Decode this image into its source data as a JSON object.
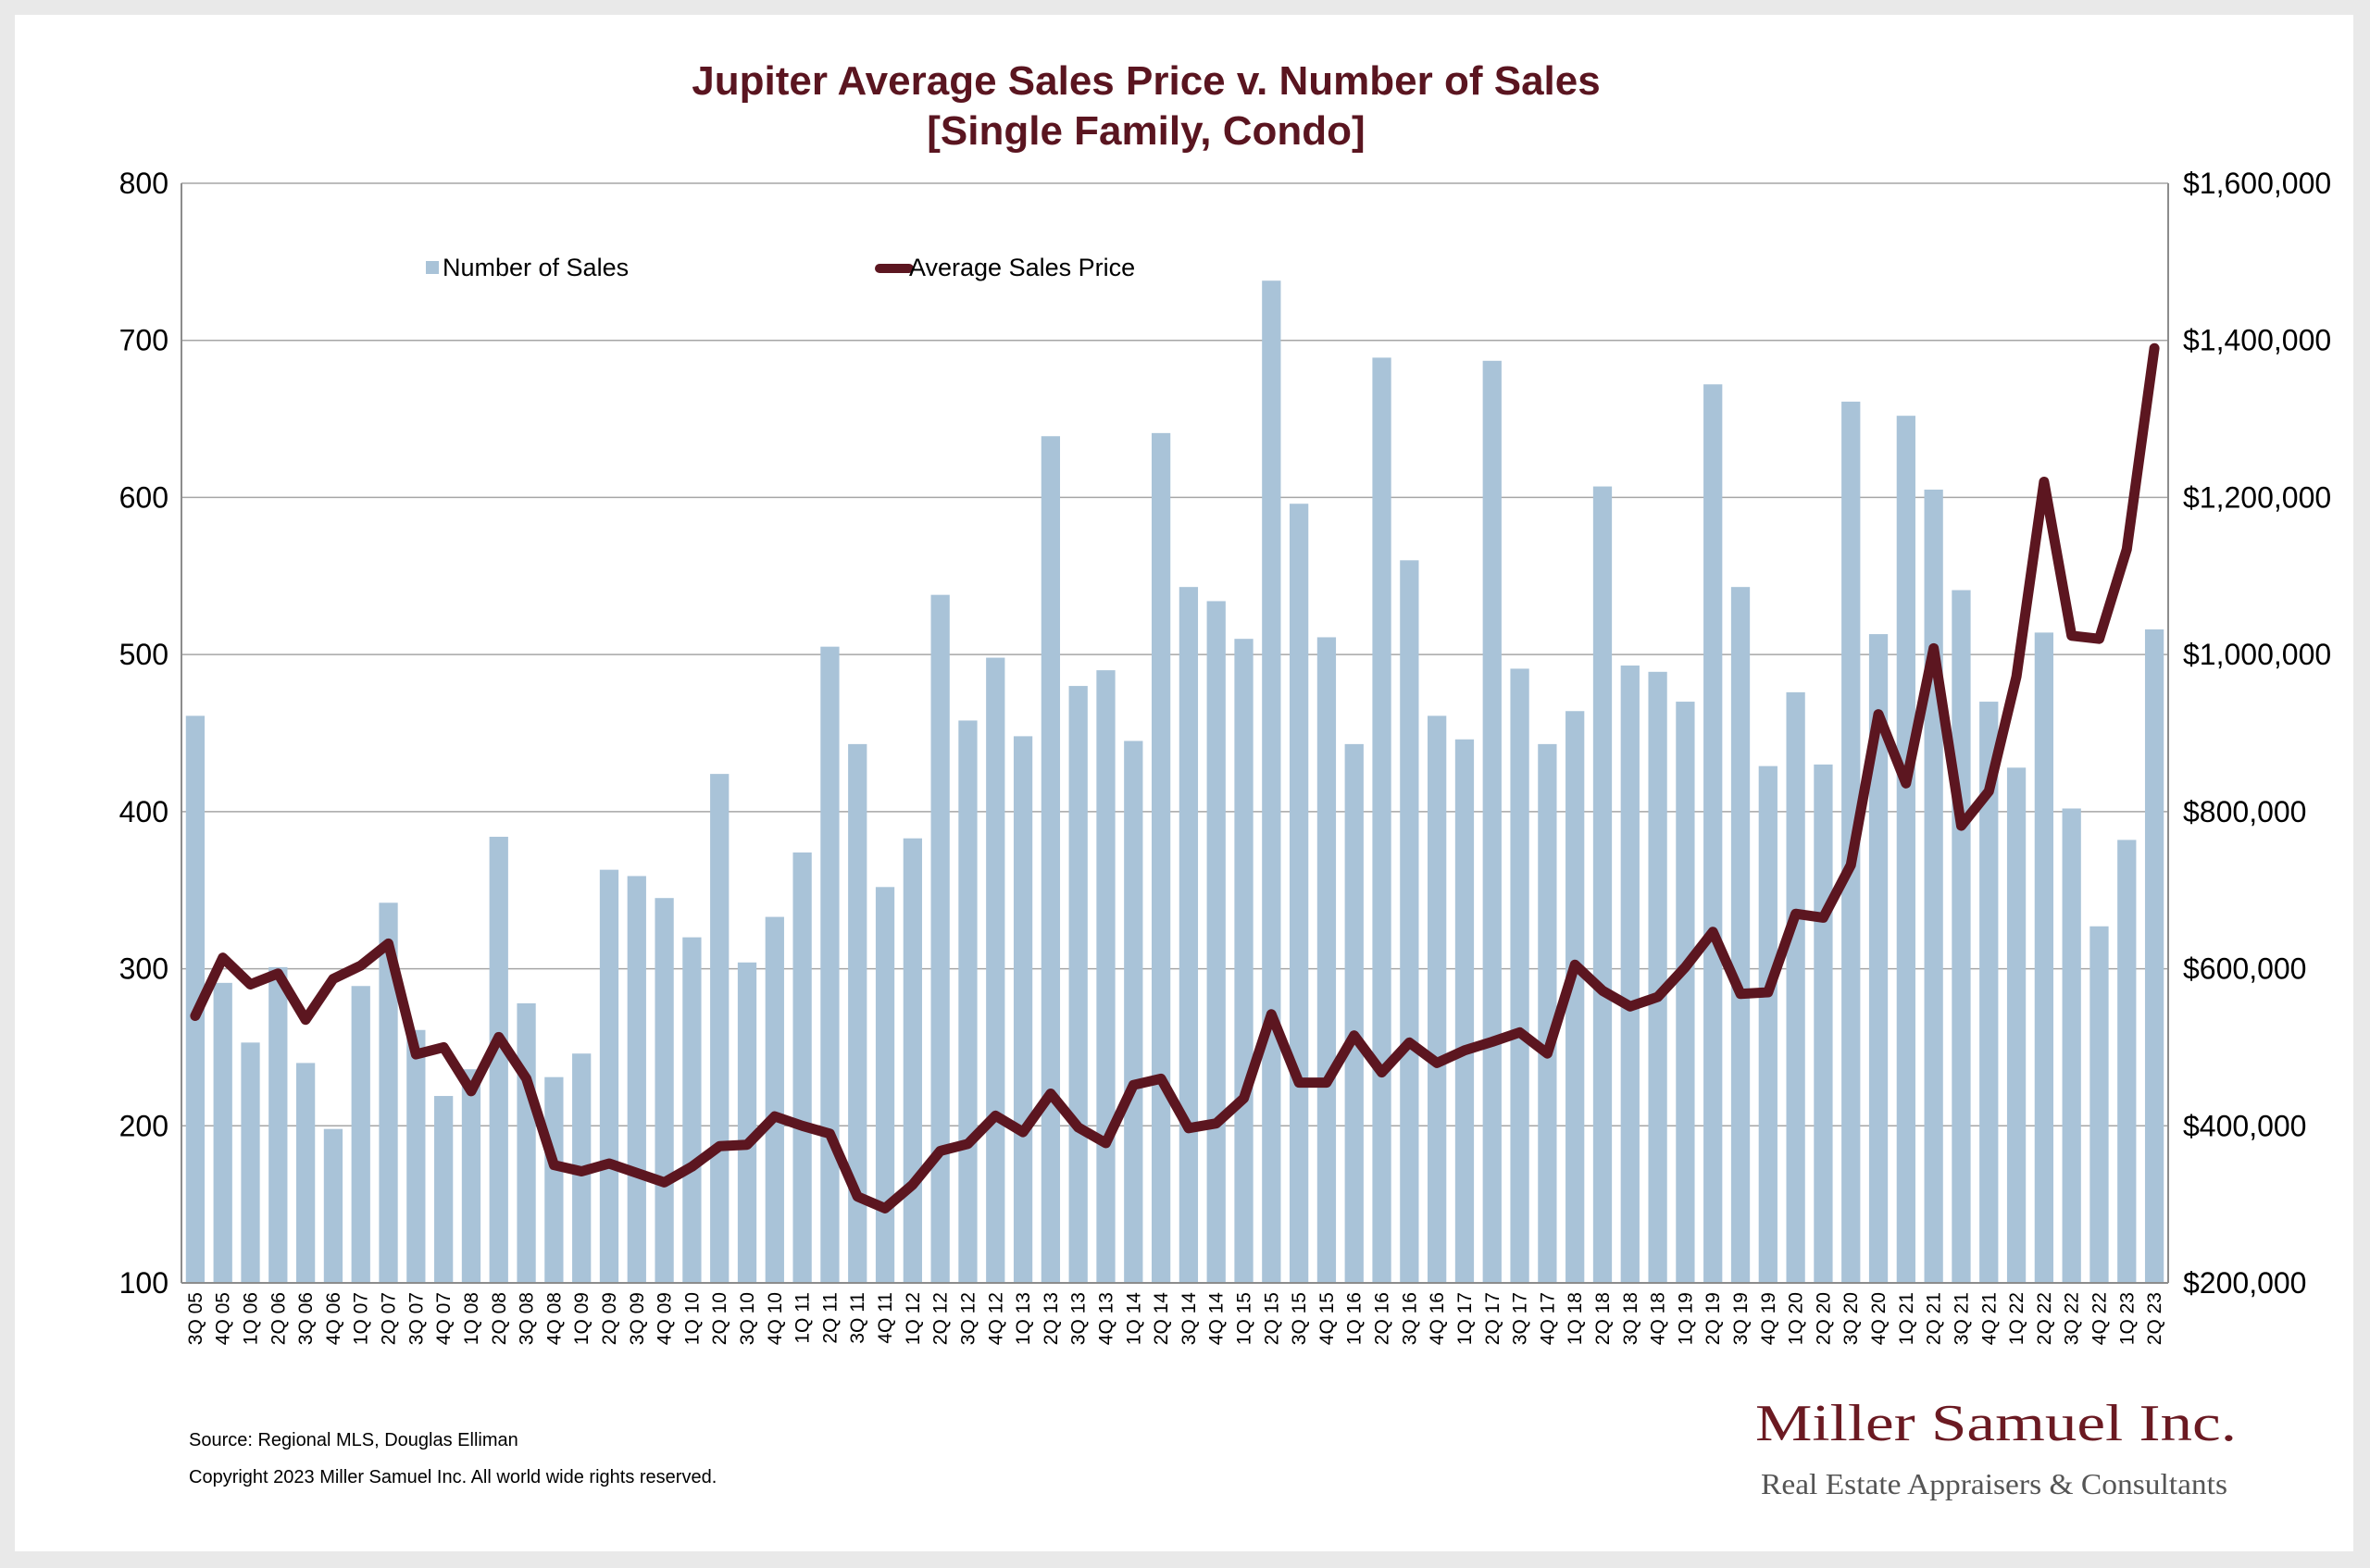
{
  "chart_data": {
    "type": "bar",
    "title": "Jupiter Average Sales Price v. Number of Sales",
    "subtitle": "[Single Family, Condo]",
    "categories": [
      "3Q 05",
      "4Q 05",
      "1Q 06",
      "2Q 06",
      "3Q 06",
      "4Q 06",
      "1Q 07",
      "2Q 07",
      "3Q 07",
      "4Q 07",
      "1Q 08",
      "2Q 08",
      "3Q 08",
      "4Q 08",
      "1Q 09",
      "2Q 09",
      "3Q 09",
      "4Q 09",
      "1Q 10",
      "2Q 10",
      "3Q 10",
      "4Q 10",
      "1Q 11",
      "2Q 11",
      "3Q 11",
      "4Q 11",
      "1Q 12",
      "2Q 12",
      "3Q 12",
      "4Q 12",
      "1Q 13",
      "2Q 13",
      "3Q 13",
      "4Q 13",
      "1Q 14",
      "2Q 14",
      "3Q 14",
      "4Q 14",
      "1Q 15",
      "2Q 15",
      "3Q 15",
      "4Q 15",
      "1Q 16",
      "2Q 16",
      "3Q 16",
      "4Q 16",
      "1Q 17",
      "2Q 17",
      "3Q 17",
      "4Q 17",
      "1Q 18",
      "2Q 18",
      "3Q 18",
      "4Q 18",
      "1Q 19",
      "2Q 19",
      "3Q 19",
      "4Q 19",
      "1Q 20",
      "2Q 20",
      "3Q 20",
      "4Q 20",
      "1Q 21",
      "2Q 21",
      "3Q 21",
      "4Q 21",
      "1Q 22",
      "2Q 22",
      "3Q 22",
      "4Q 22",
      "1Q 23",
      "2Q 23"
    ],
    "series": [
      {
        "name": "Number of Sales",
        "type": "bar",
        "axis": "left",
        "color": "#a9c3d8",
        "values": [
          461,
          291,
          253,
          301,
          240,
          198,
          289,
          342,
          261,
          219,
          236,
          384,
          278,
          231,
          246,
          363,
          359,
          345,
          320,
          424,
          304,
          333,
          374,
          505,
          443,
          352,
          383,
          538,
          458,
          498,
          448,
          639,
          480,
          490,
          445,
          641,
          543,
          534,
          510,
          738,
          596,
          511,
          443,
          689,
          560,
          461,
          446,
          687,
          491,
          443,
          464,
          607,
          493,
          489,
          470,
          672,
          543,
          429,
          476,
          430,
          661,
          513,
          652,
          605,
          541,
          470,
          428,
          514,
          402,
          327,
          382,
          516
        ]
      },
      {
        "name": "Average Sales Price",
        "type": "line",
        "axis": "right",
        "color": "#5c1620",
        "values": [
          540000,
          614000,
          580000,
          594000,
          535000,
          587000,
          604000,
          632000,
          491000,
          500000,
          444000,
          513000,
          460000,
          350000,
          342000,
          352000,
          340000,
          328000,
          348000,
          374000,
          376000,
          412000,
          400000,
          390000,
          310000,
          295000,
          325000,
          368000,
          377000,
          413000,
          392000,
          441000,
          398000,
          378000,
          452000,
          460000,
          397000,
          403000,
          435000,
          542000,
          455000,
          455000,
          515000,
          468000,
          506000,
          480000,
          496000,
          507000,
          519000,
          492000,
          605000,
          572000,
          552000,
          564000,
          602000,
          647000,
          568000,
          570000,
          670000,
          665000,
          732000,
          924000,
          836000,
          1008000,
          782000,
          826000,
          972000,
          1220000,
          1024000,
          1020000,
          1134000,
          1390000
        ]
      }
    ],
    "y_left": {
      "min": 100,
      "max": 800,
      "ticks": [
        100,
        200,
        300,
        400,
        500,
        600,
        700,
        800
      ],
      "tick_labels": [
        "100",
        "200",
        "300",
        "400",
        "500",
        "600",
        "700",
        "800"
      ]
    },
    "y_right": {
      "min": 200000,
      "max": 1600000,
      "ticks": [
        200000,
        400000,
        600000,
        800000,
        1000000,
        1200000,
        1400000,
        1600000
      ],
      "tick_labels": [
        "$200,000",
        "$400,000",
        "$600,000",
        "$800,000",
        "$1,000,000",
        "$1,200,000",
        "$1,400,000",
        "$1,600,000"
      ]
    },
    "grid": true,
    "legend_position": "top-left",
    "legend": [
      {
        "label": "Number of Sales",
        "color": "#a9c3d8"
      },
      {
        "label": "Average Sales Price",
        "color": "#5c1620"
      }
    ]
  },
  "footer": {
    "source": "Source: Regional MLS, Douglas Elliman",
    "copyright": "Copyright 2023 Miller Samuel Inc.  All world wide rights reserved."
  },
  "logo": {
    "name": "Miller Samuel Inc.",
    "tagline": "Real Estate Appraisers & Consultants"
  }
}
